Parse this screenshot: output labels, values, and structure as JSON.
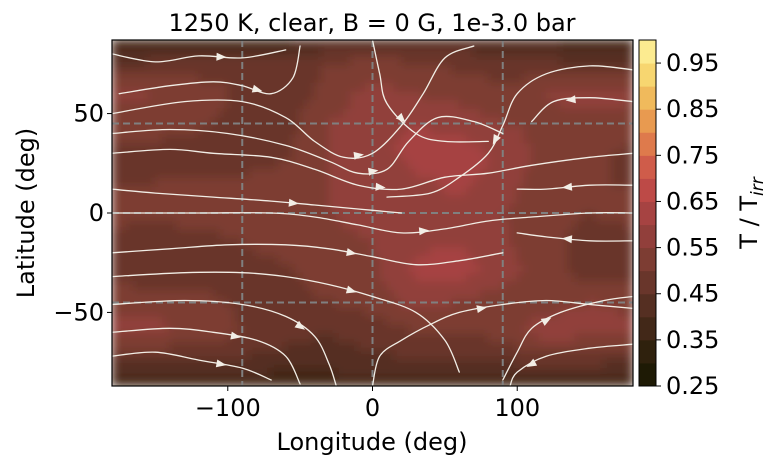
{
  "chart_data": {
    "type": "heatmap",
    "subtype": "filled-contour-with-streamlines",
    "title": "1250 K, clear, B = 0 G, 1e-3.0 bar",
    "xlabel": "Longitude (deg)",
    "ylabel": "Latitude (deg)",
    "xlim": [
      -180,
      180
    ],
    "ylim": [
      -87,
      87
    ],
    "xticks": [
      -100,
      0,
      100
    ],
    "xtick_labels": [
      "−100",
      "0",
      "100"
    ],
    "yticks": [
      50,
      0,
      -50
    ],
    "ytick_labels": [
      "50",
      "0",
      "−50"
    ],
    "guide_lines": {
      "vertical_longitudes": [
        -90,
        0,
        90
      ],
      "horizontal_latitudes": [
        45,
        0,
        -45
      ],
      "color": "#808080",
      "style": "dashed"
    },
    "colorbar": {
      "label_main": "T / T",
      "label_sub": "irr",
      "range": [
        0.25,
        1.0
      ],
      "levels": [
        0.25,
        0.3,
        0.35,
        0.4,
        0.45,
        0.5,
        0.55,
        0.6,
        0.65,
        0.7,
        0.75,
        0.8,
        0.85,
        0.9,
        0.95,
        1.0
      ],
      "level_colors": [
        "#1e1a05",
        "#2f210d",
        "#422818",
        "#552f22",
        "#69362b",
        "#7d3d33",
        "#913f3b",
        "#a64342",
        "#bd4a47",
        "#cf5c4a",
        "#de7a4c",
        "#e89a50",
        "#f0ba5c",
        "#f7d670",
        "#fceb90"
      ],
      "tick_values": [
        0.25,
        0.35,
        0.45,
        0.55,
        0.65,
        0.75,
        0.85,
        0.95
      ],
      "tick_labels": [
        "0.25",
        "0.35",
        "0.45",
        "0.55",
        "0.65",
        "0.75",
        "0.85",
        "0.95"
      ]
    },
    "temperature_field": {
      "lon": [
        -180,
        -150,
        -120,
        -90,
        -60,
        -30,
        0,
        30,
        60,
        90,
        120,
        150,
        180
      ],
      "lat": [
        87,
        75,
        60,
        45,
        30,
        15,
        0,
        -15,
        -30,
        -45,
        -60,
        -75,
        -87
      ],
      "values": [
        [
          0.38,
          0.37,
          0.37,
          0.37,
          0.38,
          0.4,
          0.42,
          0.42,
          0.42,
          0.4,
          0.39,
          0.38,
          0.38
        ],
        [
          0.45,
          0.46,
          0.47,
          0.48,
          0.46,
          0.5,
          0.52,
          0.5,
          0.49,
          0.47,
          0.46,
          0.45,
          0.45
        ],
        [
          0.56,
          0.55,
          0.53,
          0.49,
          0.46,
          0.52,
          0.57,
          0.55,
          0.53,
          0.52,
          0.55,
          0.57,
          0.56
        ],
        [
          0.53,
          0.53,
          0.51,
          0.48,
          0.48,
          0.55,
          0.58,
          0.6,
          0.58,
          0.55,
          0.54,
          0.54,
          0.53
        ],
        [
          0.49,
          0.48,
          0.47,
          0.46,
          0.49,
          0.55,
          0.58,
          0.62,
          0.63,
          0.59,
          0.53,
          0.51,
          0.49
        ],
        [
          0.5,
          0.5,
          0.51,
          0.51,
          0.53,
          0.55,
          0.55,
          0.59,
          0.61,
          0.58,
          0.52,
          0.5,
          0.5
        ],
        [
          0.51,
          0.51,
          0.52,
          0.53,
          0.54,
          0.55,
          0.58,
          0.6,
          0.59,
          0.55,
          0.51,
          0.5,
          0.51
        ],
        [
          0.49,
          0.48,
          0.48,
          0.5,
          0.52,
          0.53,
          0.55,
          0.59,
          0.6,
          0.56,
          0.51,
          0.49,
          0.49
        ],
        [
          0.47,
          0.46,
          0.47,
          0.48,
          0.49,
          0.52,
          0.54,
          0.61,
          0.62,
          0.58,
          0.52,
          0.48,
          0.47
        ],
        [
          0.54,
          0.54,
          0.52,
          0.49,
          0.49,
          0.5,
          0.52,
          0.57,
          0.55,
          0.51,
          0.53,
          0.55,
          0.54
        ],
        [
          0.56,
          0.56,
          0.54,
          0.5,
          0.47,
          0.45,
          0.47,
          0.5,
          0.5,
          0.52,
          0.58,
          0.57,
          0.56
        ],
        [
          0.45,
          0.45,
          0.44,
          0.44,
          0.43,
          0.43,
          0.44,
          0.44,
          0.44,
          0.45,
          0.47,
          0.46,
          0.45
        ],
        [
          0.38,
          0.37,
          0.37,
          0.36,
          0.36,
          0.36,
          0.37,
          0.37,
          0.37,
          0.38,
          0.38,
          0.38,
          0.38
        ]
      ]
    },
    "streamlines": {
      "color": "#f2eee6",
      "lines": [
        [
          [
            -180,
            80
          ],
          [
            -150,
            76
          ],
          [
            -120,
            79
          ],
          [
            -90,
            78
          ],
          [
            -60,
            82
          ]
        ],
        [
          [
            -175,
            60
          ],
          [
            -140,
            64
          ],
          [
            -110,
            66
          ],
          [
            -90,
            64
          ],
          [
            -70,
            60
          ],
          [
            -55,
            68
          ],
          [
            -50,
            84
          ]
        ],
        [
          [
            -180,
            50
          ],
          [
            -130,
            56
          ],
          [
            -90,
            56
          ],
          [
            -60,
            48
          ],
          [
            -40,
            36
          ],
          [
            -20,
            28
          ],
          [
            0,
            30
          ],
          [
            20,
            44
          ],
          [
            35,
            60
          ],
          [
            50,
            78
          ],
          [
            70,
            84
          ]
        ],
        [
          [
            -180,
            40
          ],
          [
            -140,
            42
          ],
          [
            -100,
            40
          ],
          [
            -60,
            34
          ],
          [
            -30,
            26
          ],
          [
            -10,
            20
          ],
          [
            10,
            22
          ],
          [
            25,
            36
          ],
          [
            45,
            48
          ],
          [
            70,
            46
          ],
          [
            90,
            40
          ]
        ],
        [
          [
            -180,
            30
          ],
          [
            -140,
            32
          ],
          [
            -110,
            30
          ],
          [
            -70,
            28
          ],
          [
            -40,
            22
          ],
          [
            -10,
            14
          ],
          [
            20,
            12
          ],
          [
            50,
            18
          ],
          [
            80,
            20
          ],
          [
            110,
            24
          ],
          [
            150,
            28
          ],
          [
            180,
            30
          ]
        ],
        [
          [
            -180,
            12
          ],
          [
            -150,
            10
          ],
          [
            -110,
            8
          ],
          [
            -70,
            6
          ],
          [
            -40,
            4
          ],
          [
            -10,
            2
          ],
          [
            20,
            0
          ]
        ],
        [
          [
            -180,
            0
          ],
          [
            -120,
            0
          ],
          [
            -70,
            0
          ],
          [
            -40,
            -2
          ],
          [
            -10,
            -6
          ],
          [
            20,
            -10
          ],
          [
            50,
            -8
          ],
          [
            80,
            -4
          ],
          [
            110,
            -2
          ],
          [
            150,
            0
          ],
          [
            180,
            0
          ]
        ],
        [
          [
            -180,
            -20
          ],
          [
            -140,
            -18
          ],
          [
            -100,
            -16
          ],
          [
            -60,
            -16
          ],
          [
            -30,
            -18
          ],
          [
            0,
            -22
          ],
          [
            30,
            -26
          ],
          [
            60,
            -24
          ],
          [
            90,
            -20
          ]
        ],
        [
          [
            -180,
            -32
          ],
          [
            -130,
            -30
          ],
          [
            -90,
            -30
          ],
          [
            -60,
            -32
          ],
          [
            -30,
            -36
          ],
          [
            0,
            -42
          ],
          [
            30,
            -50
          ],
          [
            50,
            -64
          ],
          [
            60,
            -80
          ]
        ],
        [
          [
            -180,
            -46
          ],
          [
            -130,
            -44
          ],
          [
            -90,
            -46
          ],
          [
            -60,
            -52
          ],
          [
            -40,
            -62
          ],
          [
            -30,
            -76
          ],
          [
            -25,
            -87
          ]
        ],
        [
          [
            -180,
            -60
          ],
          [
            -140,
            -58
          ],
          [
            -110,
            -60
          ],
          [
            -80,
            -64
          ],
          [
            -60,
            -72
          ],
          [
            -50,
            -86
          ]
        ],
        [
          [
            -180,
            -72
          ],
          [
            -150,
            -70
          ],
          [
            -120,
            -74
          ],
          [
            -90,
            -78
          ],
          [
            -70,
            -84
          ]
        ],
        [
          [
            180,
            72
          ],
          [
            150,
            74
          ],
          [
            120,
            70
          ],
          [
            100,
            60
          ],
          [
            90,
            44
          ],
          [
            80,
            30
          ],
          [
            60,
            18
          ],
          [
            40,
            10
          ],
          [
            10,
            8
          ]
        ],
        [
          [
            180,
            56
          ],
          [
            150,
            58
          ],
          [
            125,
            56
          ],
          [
            110,
            46
          ]
        ],
        [
          [
            180,
            14
          ],
          [
            150,
            14
          ],
          [
            120,
            12
          ],
          [
            100,
            12
          ]
        ],
        [
          [
            180,
            -14
          ],
          [
            150,
            -14
          ],
          [
            120,
            -12
          ],
          [
            100,
            -10
          ]
        ],
        [
          [
            90,
            -84
          ],
          [
            100,
            -70
          ],
          [
            110,
            -58
          ],
          [
            130,
            -50
          ],
          [
            160,
            -44
          ],
          [
            180,
            -42
          ]
        ],
        [
          [
            180,
            -66
          ],
          [
            150,
            -68
          ],
          [
            120,
            -72
          ],
          [
            100,
            -80
          ],
          [
            95,
            -87
          ]
        ],
        [
          [
            0,
            87
          ],
          [
            5,
            70
          ],
          [
            10,
            55
          ],
          [
            30,
            40
          ],
          [
            50,
            36
          ],
          [
            80,
            36
          ]
        ],
        [
          [
            0,
            -87
          ],
          [
            5,
            -72
          ],
          [
            20,
            -64
          ],
          [
            40,
            -56
          ],
          [
            60,
            -50
          ],
          [
            90,
            -46
          ],
          [
            120,
            -44
          ],
          [
            150,
            -46
          ],
          [
            180,
            -48
          ]
        ]
      ]
    }
  }
}
